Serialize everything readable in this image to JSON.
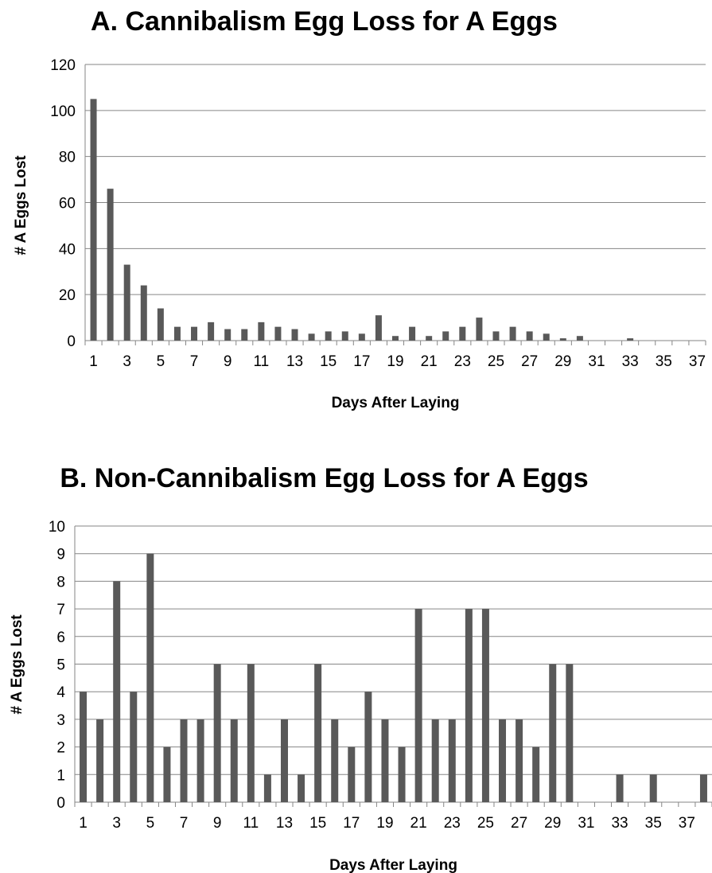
{
  "chart_data": [
    {
      "type": "bar",
      "title": "A. Cannibalism Egg Loss for A Eggs",
      "xlabel": "Days After Laying",
      "ylabel": "# A Eggs Lost",
      "ylim": [
        0,
        120
      ],
      "yticks": [
        0,
        20,
        40,
        60,
        80,
        100,
        120
      ],
      "grid": true,
      "legend": "none",
      "bar_color": "#595959",
      "categories": [
        "1",
        "2",
        "3",
        "4",
        "5",
        "6",
        "7",
        "8",
        "9",
        "10",
        "11",
        "12",
        "13",
        "14",
        "15",
        "16",
        "17",
        "18",
        "19",
        "20",
        "21",
        "22",
        "23",
        "24",
        "25",
        "26",
        "27",
        "28",
        "29",
        "30",
        "31",
        "32",
        "33",
        "34",
        "35",
        "36",
        "37"
      ],
      "tick_labels": [
        "1",
        "3",
        "5",
        "7",
        "9",
        "11",
        "13",
        "15",
        "17",
        "19",
        "21",
        "23",
        "25",
        "27",
        "29",
        "31",
        "33",
        "35",
        "37"
      ],
      "values": [
        105,
        66,
        33,
        24,
        14,
        6,
        6,
        8,
        5,
        5,
        8,
        6,
        5,
        3,
        4,
        4,
        3,
        11,
        2,
        6,
        2,
        4,
        6,
        10,
        4,
        6,
        4,
        3,
        1,
        2,
        0,
        0,
        1,
        0,
        0,
        0,
        0
      ]
    },
    {
      "type": "bar",
      "title": "B. Non-Cannibalism Egg Loss for A Eggs",
      "xlabel": "Days After Laying",
      "ylabel": "# A Eggs Lost",
      "ylim": [
        0,
        10
      ],
      "yticks": [
        0,
        1,
        2,
        3,
        4,
        5,
        6,
        7,
        8,
        9,
        10
      ],
      "grid": true,
      "legend": "none",
      "bar_color": "#595959",
      "categories": [
        "1",
        "2",
        "3",
        "4",
        "5",
        "6",
        "7",
        "8",
        "9",
        "10",
        "11",
        "12",
        "13",
        "14",
        "15",
        "16",
        "17",
        "18",
        "19",
        "20",
        "21",
        "22",
        "23",
        "24",
        "25",
        "26",
        "27",
        "28",
        "29",
        "30",
        "31",
        "32",
        "33",
        "34",
        "35",
        "36",
        "37",
        "38"
      ],
      "tick_labels": [
        "1",
        "3",
        "5",
        "7",
        "9",
        "11",
        "13",
        "15",
        "17",
        "19",
        "21",
        "23",
        "25",
        "27",
        "29",
        "31",
        "33",
        "35",
        "37"
      ],
      "values": [
        4,
        3,
        8,
        4,
        9,
        2,
        3,
        3,
        5,
        3,
        5,
        1,
        3,
        1,
        5,
        3,
        2,
        4,
        3,
        2,
        7,
        3,
        3,
        7,
        7,
        3,
        3,
        2,
        5,
        5,
        0,
        0,
        1,
        0,
        1,
        0,
        0,
        1
      ]
    }
  ]
}
